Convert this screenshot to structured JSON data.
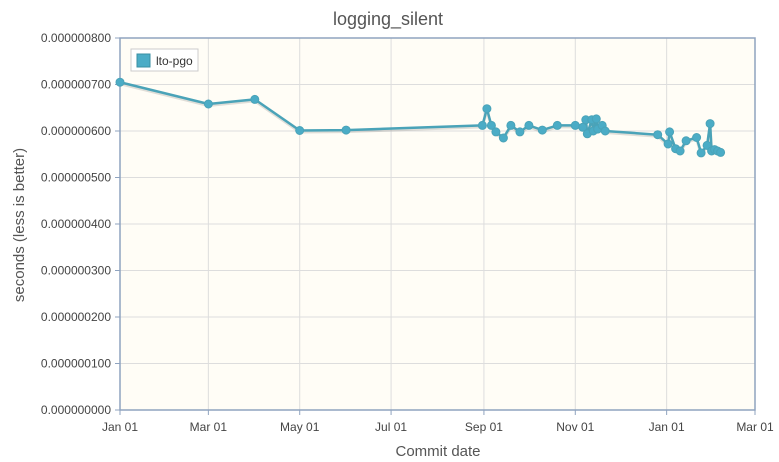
{
  "chart_data": {
    "type": "line",
    "title": "logging_silent",
    "xlabel": "Commit date",
    "ylabel": "seconds (less is better)",
    "x_ticks": [
      "Jan 01",
      "Mar 01",
      "May 01",
      "Jul 01",
      "Sep 01",
      "Nov 01",
      "Jan 01",
      "Mar 01"
    ],
    "y_ticks": [
      "0.000000000",
      "0.000000100",
      "0.000000200",
      "0.000000300",
      "0.000000400",
      "0.000000500",
      "0.000000600",
      "0.000000700",
      "0.000000800"
    ],
    "ylim": [
      0,
      8e-07
    ],
    "xlim": [
      "2022-01-01",
      "2023-03-01"
    ],
    "legend": {
      "position": "top-left",
      "entries": [
        "lto-pgo"
      ]
    },
    "grid": true,
    "colors": {
      "series": "#4bacc6",
      "series_line": "#4aa3b8",
      "plot_background": "#fffdf6",
      "grid": "#dddddd",
      "axis": "#8fa3bf"
    },
    "series": [
      {
        "name": "lto-pgo",
        "points": [
          [
            "2022-01-01",
            7.05e-07
          ],
          [
            "2022-03-01",
            6.58e-07
          ],
          [
            "2022-04-01",
            6.68e-07
          ],
          [
            "2022-05-01",
            6.01e-07
          ],
          [
            "2022-06-01",
            6.02e-07
          ],
          [
            "2022-08-31",
            6.12e-07
          ],
          [
            "2022-09-03",
            6.48e-07
          ],
          [
            "2022-09-06",
            6.12e-07
          ],
          [
            "2022-09-09",
            5.98e-07
          ],
          [
            "2022-09-14",
            5.85e-07
          ],
          [
            "2022-09-19",
            6.12e-07
          ],
          [
            "2022-09-25",
            5.98e-07
          ],
          [
            "2022-10-01",
            6.12e-07
          ],
          [
            "2022-10-10",
            6.02e-07
          ],
          [
            "2022-10-20",
            6.12e-07
          ],
          [
            "2022-11-01",
            6.12e-07
          ],
          [
            "2022-11-06",
            6.08e-07
          ],
          [
            "2022-11-08",
            6.24e-07
          ],
          [
            "2022-11-09",
            5.94e-07
          ],
          [
            "2022-11-12",
            6.24e-07
          ],
          [
            "2022-11-13",
            6e-07
          ],
          [
            "2022-11-15",
            6.26e-07
          ],
          [
            "2022-11-16",
            6.04e-07
          ],
          [
            "2022-11-19",
            6.12e-07
          ],
          [
            "2022-11-21",
            6e-07
          ],
          [
            "2022-12-26",
            5.92e-07
          ],
          [
            "2023-01-02",
            5.72e-07
          ],
          [
            "2023-01-03",
            5.98e-07
          ],
          [
            "2023-01-07",
            5.62e-07
          ],
          [
            "2023-01-10",
            5.57e-07
          ],
          [
            "2023-01-14",
            5.79e-07
          ],
          [
            "2023-01-21",
            5.86e-07
          ],
          [
            "2023-01-24",
            5.53e-07
          ],
          [
            "2023-01-28",
            5.69e-07
          ],
          [
            "2023-01-30",
            6.16e-07
          ],
          [
            "2023-01-31",
            5.57e-07
          ],
          [
            "2023-02-02",
            5.6e-07
          ],
          [
            "2023-02-04",
            5.57e-07
          ],
          [
            "2023-02-06",
            5.54e-07
          ]
        ]
      }
    ]
  }
}
